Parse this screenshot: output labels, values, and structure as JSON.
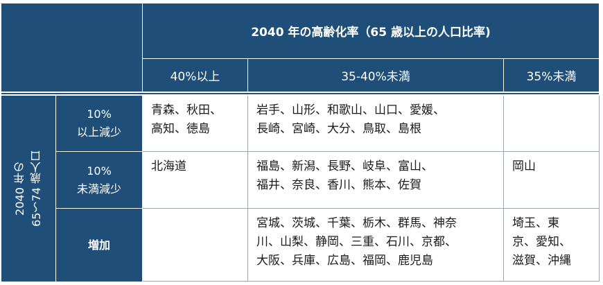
{
  "table": {
    "header_title": "2040 年の高齢化率（65 歳以上の人口比率)",
    "columns": [
      "40%以上",
      "35-40%未満",
      "35%未満"
    ],
    "row_group_label": [
      "2040 年の",
      "65～74 歳人口"
    ],
    "rows": [
      {
        "label": [
          "10%",
          "以上減少"
        ],
        "cells": [
          [
            "青森、秋田、",
            "高知、徳島"
          ],
          [
            "岩手、山形、和歌山、山口、愛媛、",
            "長崎、宮崎、大分、鳥取、島根"
          ],
          []
        ]
      },
      {
        "label": [
          "10%",
          "未満減少"
        ],
        "cells": [
          [
            "北海道"
          ],
          [
            "福島、新潟、長野、岐阜、富山、",
            "福井、奈良、香川、熊本、佐賀"
          ],
          [
            "岡山"
          ]
        ]
      },
      {
        "label": [
          "増加"
        ],
        "cells": [
          [],
          [
            "宮城、茨城、千葉、栃木、群馬、神奈",
            "川、山梨、静岡、三重、石川、京都、",
            "大阪、兵庫、広島、福岡、鹿児島"
          ],
          [
            "埼玉、東",
            "京、愛知、",
            "滋賀、沖縄"
          ]
        ]
      }
    ]
  }
}
